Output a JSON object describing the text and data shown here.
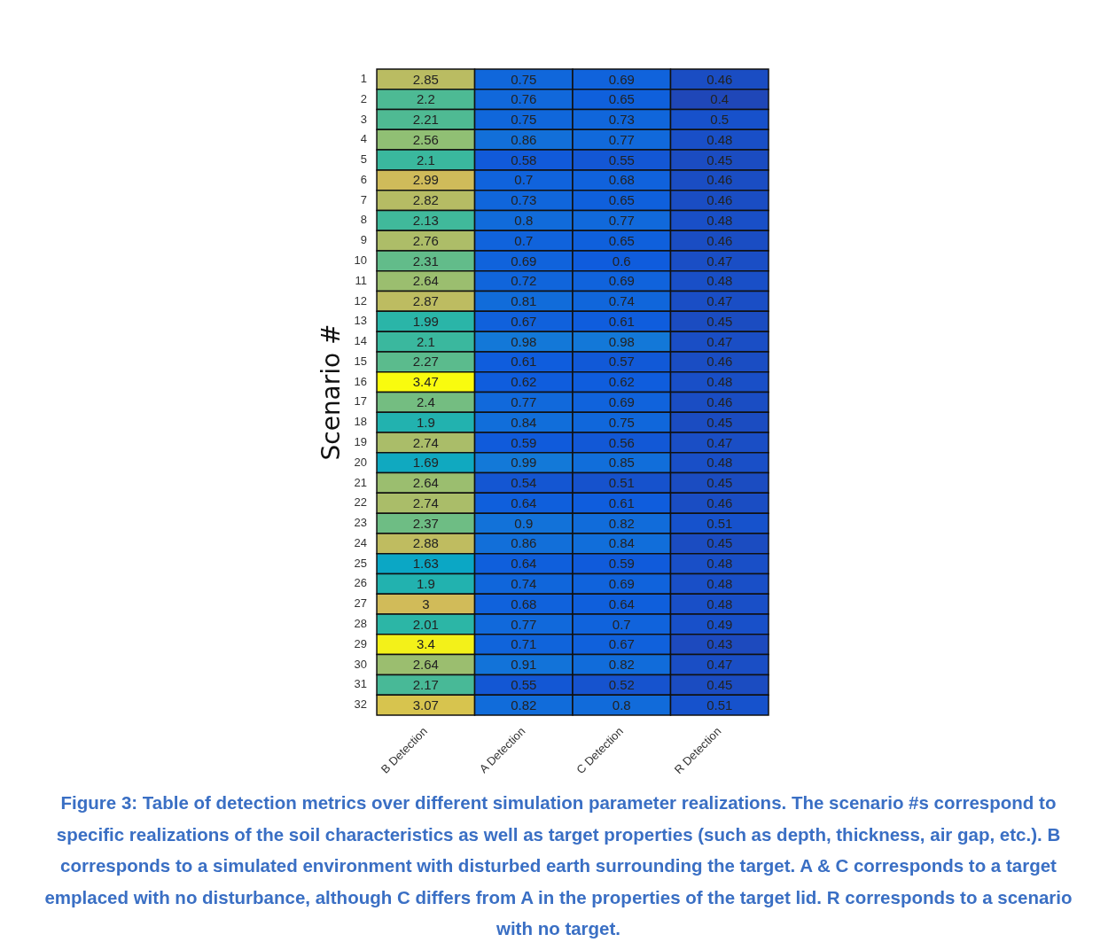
{
  "chart_data": {
    "type": "heatmap",
    "ylabel": "Scenario #",
    "categories": [
      "B Detection",
      "A Detection",
      "C Detection",
      "R Detection"
    ],
    "y_categories": [
      "1",
      "2",
      "3",
      "4",
      "5",
      "6",
      "7",
      "8",
      "9",
      "10",
      "11",
      "12",
      "13",
      "14",
      "15",
      "16",
      "17",
      "18",
      "19",
      "20",
      "21",
      "22",
      "23",
      "24",
      "25",
      "26",
      "27",
      "28",
      "29",
      "30",
      "31",
      "32"
    ],
    "cells": [
      [
        2.85,
        0.75,
        0.69,
        0.46
      ],
      [
        2.2,
        0.76,
        0.65,
        0.4
      ],
      [
        2.21,
        0.75,
        0.73,
        0.5
      ],
      [
        2.56,
        0.86,
        0.77,
        0.48
      ],
      [
        2.1,
        0.58,
        0.55,
        0.45
      ],
      [
        2.99,
        0.7,
        0.68,
        0.46
      ],
      [
        2.82,
        0.73,
        0.65,
        0.46
      ],
      [
        2.13,
        0.8,
        0.77,
        0.48
      ],
      [
        2.76,
        0.7,
        0.65,
        0.46
      ],
      [
        2.31,
        0.69,
        0.6,
        0.47
      ],
      [
        2.64,
        0.72,
        0.69,
        0.48
      ],
      [
        2.87,
        0.81,
        0.74,
        0.47
      ],
      [
        1.99,
        0.67,
        0.61,
        0.45
      ],
      [
        2.1,
        0.98,
        0.98,
        0.47
      ],
      [
        2.27,
        0.61,
        0.57,
        0.46
      ],
      [
        3.47,
        0.62,
        0.62,
        0.48
      ],
      [
        2.4,
        0.77,
        0.69,
        0.46
      ],
      [
        1.9,
        0.84,
        0.75,
        0.45
      ],
      [
        2.74,
        0.59,
        0.56,
        0.47
      ],
      [
        1.69,
        0.99,
        0.85,
        0.48
      ],
      [
        2.64,
        0.54,
        0.51,
        0.45
      ],
      [
        2.74,
        0.64,
        0.61,
        0.46
      ],
      [
        2.37,
        0.9,
        0.82,
        0.51
      ],
      [
        2.88,
        0.86,
        0.84,
        0.45
      ],
      [
        1.63,
        0.64,
        0.59,
        0.48
      ],
      [
        1.9,
        0.74,
        0.69,
        0.48
      ],
      [
        3,
        0.68,
        0.64,
        0.48
      ],
      [
        2.01,
        0.77,
        0.7,
        0.49
      ],
      [
        3.4,
        0.71,
        0.67,
        0.43
      ],
      [
        2.64,
        0.91,
        0.82,
        0.47
      ],
      [
        2.17,
        0.55,
        0.52,
        0.45
      ],
      [
        3.07,
        0.82,
        0.8,
        0.51
      ]
    ],
    "data_labels": true,
    "annotations": [
      "Figure 3: Table of detection metrics over different simulation parameter realizations. The scenario #s correspond to specific realizations of the soil characteristics as well as target properties (such as depth, thickness, air gap, etc.). B corresponds to a simulated environment with disturbed earth surrounding the target. A & C corresponds to a target emplaced with no disturbance, although C differs from A in the properties of the target lid. R corresponds to a scenario with no target."
    ]
  }
}
